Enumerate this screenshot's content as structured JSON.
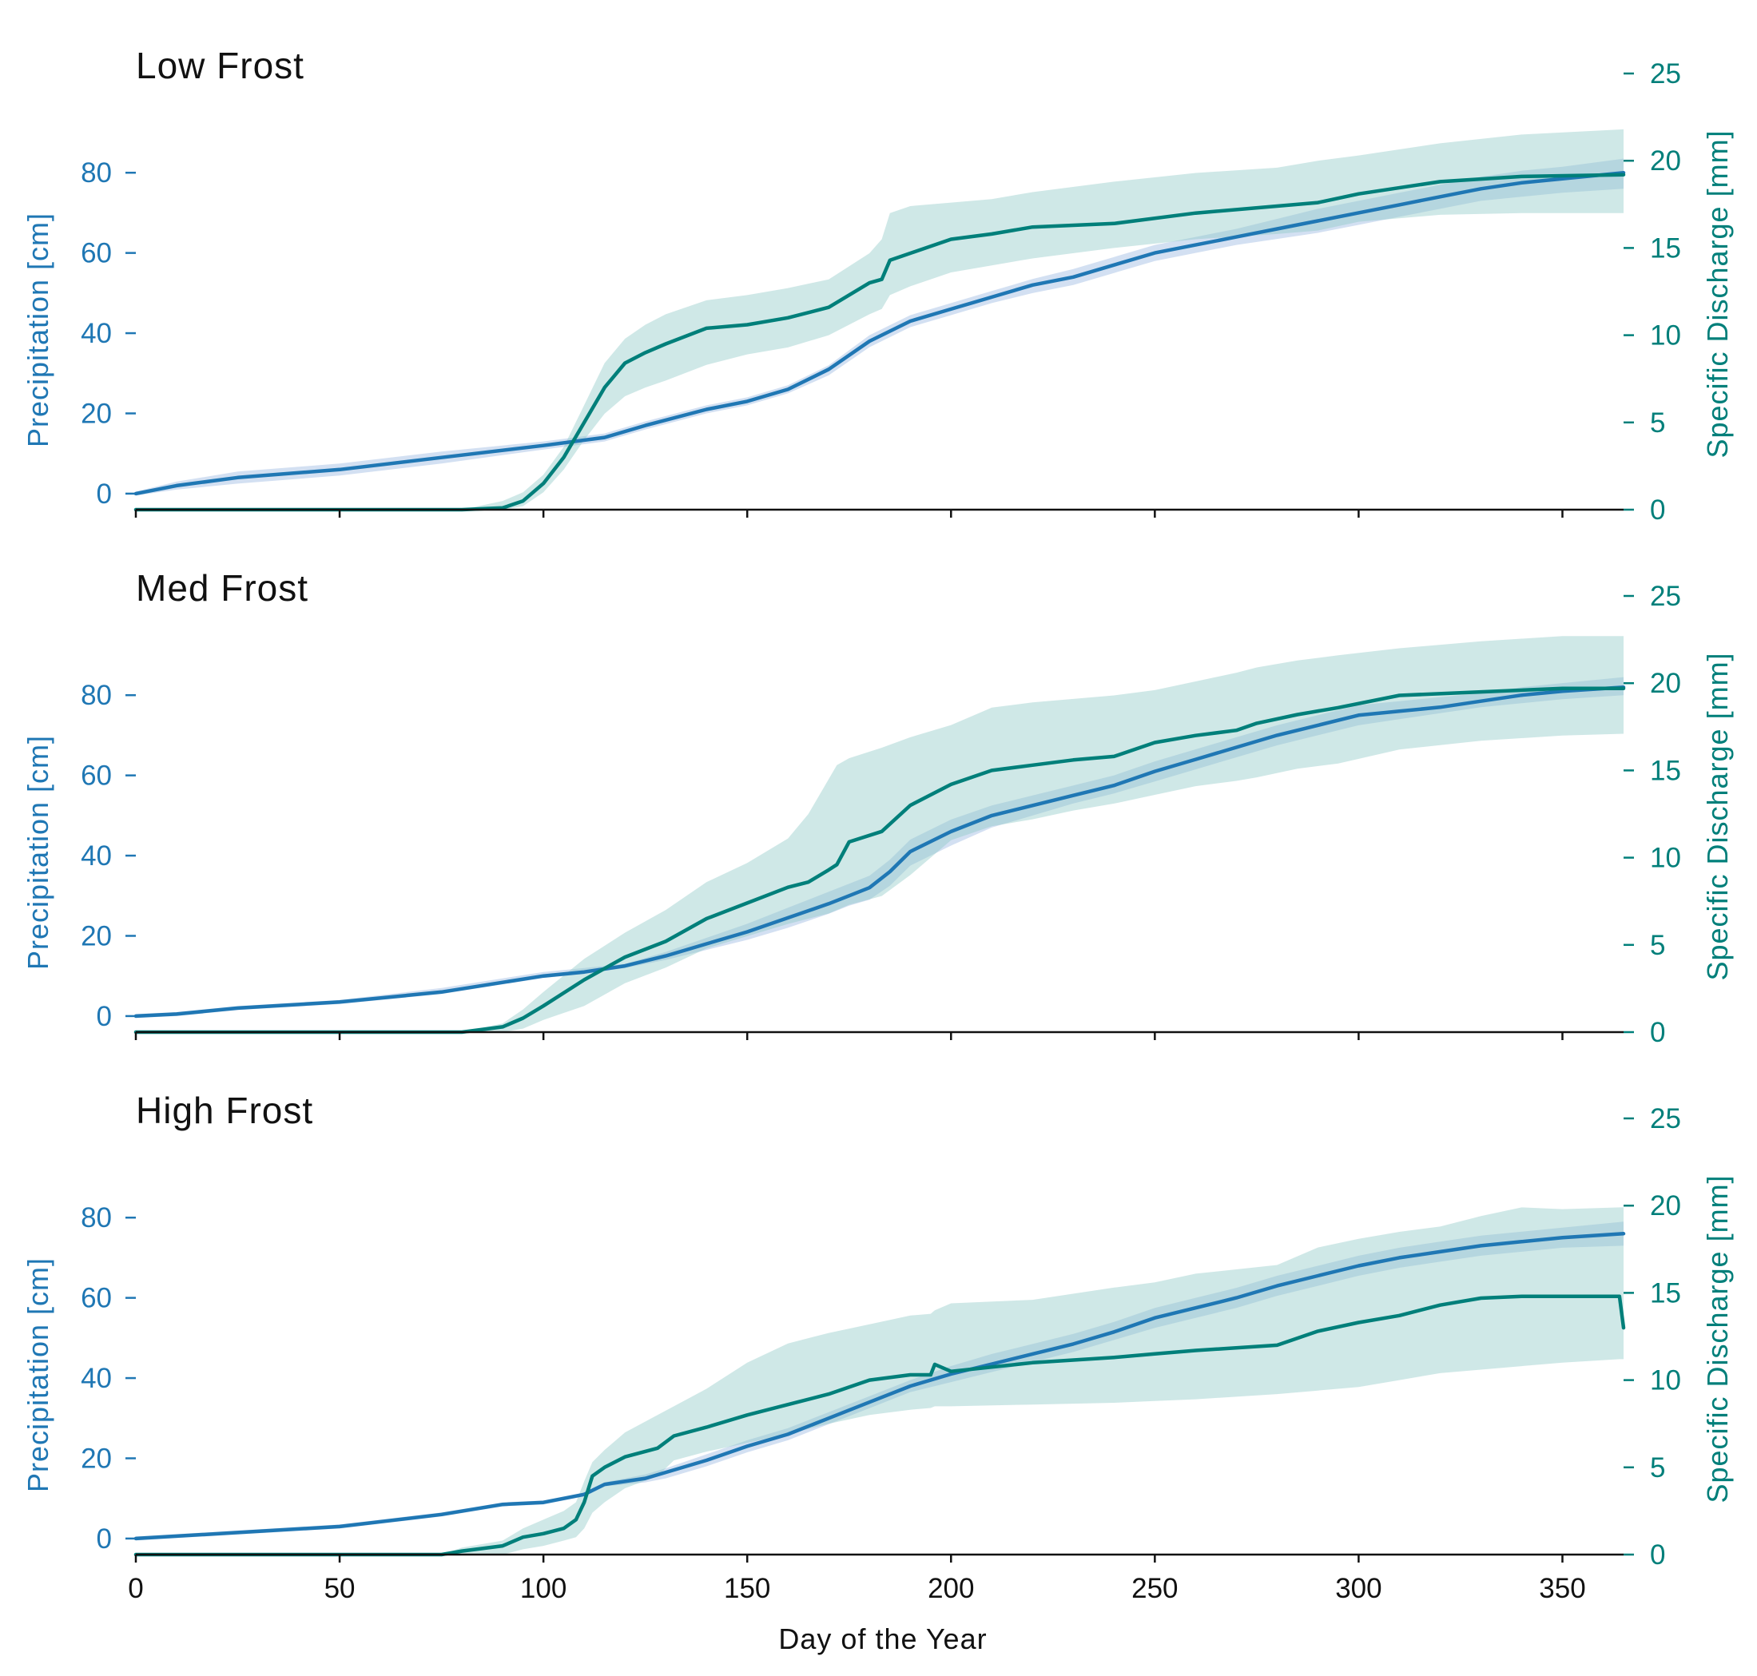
{
  "colors": {
    "precip": "#1f77b4",
    "precip_band": "#aec7e8",
    "discharge": "#007f7a",
    "discharge_band": "#8cc8c6",
    "axis": "#111111"
  },
  "x_axis": {
    "label": "Day of the Year",
    "ticks": [
      0,
      50,
      100,
      150,
      200,
      250,
      300,
      350
    ],
    "lim": [
      0,
      365
    ]
  },
  "y_left": {
    "label": "Precipitation [cm]",
    "ticks": [
      0,
      20,
      40,
      60,
      80
    ],
    "lim": [
      -4,
      90
    ]
  },
  "y_right": {
    "label": "Specific Discharge [mm]",
    "ticks": [
      0,
      5,
      10,
      15,
      20,
      25
    ],
    "lim": [
      0,
      25
    ]
  },
  "chart_data": [
    {
      "type": "line",
      "title": "Low Frost",
      "xlabel": "",
      "series": [
        {
          "axis": "left",
          "x": [
            0,
            10,
            25,
            50,
            75,
            100,
            115,
            125,
            140,
            150,
            160,
            170,
            180,
            190,
            200,
            210,
            220,
            230,
            240,
            250,
            260,
            270,
            280,
            290,
            300,
            310,
            320,
            330,
            340,
            350,
            365
          ],
          "y": [
            0,
            2,
            4,
            6,
            9,
            12,
            14,
            17,
            21,
            23,
            26,
            31,
            38,
            43,
            46,
            49,
            52,
            54,
            57,
            60,
            62,
            64,
            66,
            68,
            70,
            72,
            74,
            76,
            77.5,
            78.5,
            80
          ],
          "lower": [
            -0.5,
            1,
            2.5,
            4.5,
            7.5,
            11,
            13,
            16,
            20,
            22,
            25,
            29.5,
            36.5,
            41.5,
            44.5,
            47.5,
            50,
            52,
            55,
            58,
            60,
            62,
            63.5,
            65,
            67,
            69,
            71,
            73,
            74,
            75,
            76
          ],
          "upper": [
            0.5,
            3,
            5.5,
            7.5,
            10.5,
            13,
            15,
            18,
            22,
            24,
            27,
            32,
            39.5,
            44.5,
            47.5,
            50.5,
            53.5,
            56,
            59,
            62,
            64,
            66,
            68.5,
            71,
            73,
            75,
            77,
            79,
            80.5,
            81.5,
            83.5
          ]
        },
        {
          "axis": "right",
          "x": [
            0,
            80,
            90,
            95,
            100,
            105,
            110,
            115,
            120,
            125,
            130,
            140,
            150,
            160,
            170,
            180,
            183,
            185,
            190,
            200,
            210,
            220,
            240,
            260,
            280,
            290,
            300,
            320,
            340,
            365
          ],
          "y": [
            0,
            0,
            0.1,
            0.5,
            1.5,
            3,
            5,
            7,
            8.4,
            9,
            9.5,
            10.4,
            10.6,
            11,
            11.6,
            13,
            13.2,
            14.3,
            14.7,
            15.5,
            15.8,
            16.2,
            16.4,
            17,
            17.4,
            17.6,
            18.1,
            18.8,
            19.1,
            19.2
          ],
          "lower": [
            0,
            0,
            0,
            0.2,
            1,
            2.3,
            4,
            5.5,
            6.5,
            7,
            7.4,
            8.3,
            8.9,
            9.3,
            10,
            11.2,
            11.5,
            12.3,
            12.8,
            13.6,
            14,
            14.4,
            15,
            15.5,
            15.8,
            16,
            16.5,
            16.9,
            17,
            17
          ],
          "upper": [
            0,
            0,
            0.5,
            1,
            2,
            3.6,
            6,
            8.4,
            9.8,
            10.6,
            11.2,
            12,
            12.3,
            12.7,
            13.2,
            14.7,
            15.5,
            17,
            17.4,
            17.6,
            17.8,
            18.2,
            18.8,
            19.3,
            19.6,
            20,
            20.3,
            21,
            21.5,
            21.8
          ]
        }
      ]
    },
    {
      "type": "line",
      "title": "Med Frost",
      "xlabel": "",
      "series": [
        {
          "axis": "left",
          "x": [
            0,
            10,
            25,
            50,
            75,
            100,
            110,
            120,
            130,
            140,
            150,
            160,
            170,
            175,
            180,
            185,
            190,
            200,
            210,
            220,
            230,
            240,
            250,
            260,
            270,
            280,
            290,
            300,
            310,
            320,
            330,
            340,
            350,
            365
          ],
          "y": [
            0,
            0.5,
            2,
            3.5,
            6,
            10,
            11,
            12.5,
            15,
            18,
            21,
            24.5,
            28,
            30,
            32,
            36,
            41,
            46,
            50,
            52.5,
            55,
            57.5,
            61,
            64,
            67,
            70,
            72.5,
            75,
            76,
            77,
            78.5,
            80,
            81,
            82
          ],
          "lower": [
            -0.5,
            0,
            1.5,
            3,
            5.5,
            9.5,
            10.5,
            12,
            14,
            16.5,
            19,
            22,
            25.5,
            27.5,
            29,
            32.5,
            37.5,
            42.5,
            47,
            50,
            53,
            55.5,
            58.5,
            61.5,
            64.5,
            67.5,
            70,
            72.5,
            74,
            75.5,
            77,
            78,
            79,
            80
          ],
          "upper": [
            0.5,
            1,
            2.5,
            4,
            7,
            11,
            12,
            13,
            16,
            19.5,
            23,
            27,
            31,
            33,
            35,
            39,
            44,
            49,
            52.5,
            55,
            57.5,
            60,
            63.5,
            66.5,
            69.5,
            72.5,
            75,
            77.5,
            78.5,
            79.5,
            80.5,
            82,
            83,
            84.5
          ]
        },
        {
          "axis": "right",
          "x": [
            0,
            80,
            90,
            95,
            100,
            110,
            120,
            130,
            140,
            150,
            160,
            165,
            170,
            172,
            175,
            183,
            190,
            200,
            210,
            220,
            230,
            240,
            250,
            260,
            270,
            275,
            285,
            295,
            310,
            330,
            350,
            365
          ],
          "y": [
            0,
            0,
            0.3,
            0.8,
            1.5,
            3,
            4.3,
            5.2,
            6.5,
            7.4,
            8.3,
            8.6,
            9.3,
            9.6,
            10.9,
            11.5,
            13,
            14.2,
            15,
            15.3,
            15.6,
            15.8,
            16.6,
            17,
            17.3,
            17.7,
            18.2,
            18.6,
            19.3,
            19.5,
            19.7,
            19.7
          ],
          "lower": [
            0,
            0,
            0,
            0.2,
            0.7,
            1.5,
            2.8,
            3.7,
            4.8,
            5.5,
            6.2,
            6.5,
            6.8,
            7,
            7.3,
            7.8,
            9,
            11,
            11.8,
            12.2,
            12.7,
            13.1,
            13.6,
            14.1,
            14.4,
            14.6,
            15.1,
            15.4,
            16.2,
            16.7,
            17,
            17.1
          ],
          "upper": [
            0,
            0,
            0.5,
            1.3,
            2.3,
            4.2,
            5.7,
            7,
            8.6,
            9.7,
            11.1,
            12.5,
            14.5,
            15.3,
            15.7,
            16.3,
            16.9,
            17.6,
            18.6,
            18.9,
            19.1,
            19.3,
            19.6,
            20.1,
            20.6,
            20.9,
            21.3,
            21.6,
            22,
            22.4,
            22.7,
            22.7
          ]
        }
      ]
    },
    {
      "type": "line",
      "title": "High Frost",
      "xlabel": "Day of the Year",
      "series": [
        {
          "axis": "left",
          "x": [
            0,
            25,
            50,
            75,
            90,
            100,
            110,
            115,
            125,
            130,
            140,
            150,
            160,
            170,
            180,
            190,
            200,
            210,
            220,
            230,
            240,
            250,
            260,
            270,
            280,
            290,
            300,
            310,
            320,
            330,
            340,
            350,
            365
          ],
          "y": [
            0,
            1.5,
            3,
            6,
            8.5,
            9,
            11,
            13.5,
            15,
            16.5,
            19.5,
            23,
            26,
            30,
            34,
            38,
            41,
            43.5,
            46,
            48.5,
            51.5,
            55,
            57.5,
            60,
            63,
            65.5,
            68,
            70,
            71.5,
            73,
            74,
            75,
            76
          ],
          "lower": [
            -0.5,
            1,
            2.5,
            5.5,
            8,
            8.5,
            10.5,
            13,
            14,
            15,
            18,
            21.5,
            24.5,
            28.5,
            32.5,
            36.5,
            39,
            41.5,
            44,
            46.5,
            49.5,
            52.5,
            55,
            57.5,
            60.5,
            63,
            65.5,
            67.5,
            69,
            70.5,
            71.5,
            72.5,
            73
          ],
          "upper": [
            0.5,
            2,
            3.5,
            6.5,
            9,
            9.5,
            11.5,
            14,
            16,
            17.5,
            21,
            24.5,
            27.5,
            31.5,
            35.5,
            39.5,
            43,
            46,
            48.5,
            51,
            54,
            57.5,
            60,
            62.5,
            65.5,
            68,
            70.5,
            72.5,
            74,
            75.5,
            76.5,
            77.5,
            79
          ]
        },
        {
          "axis": "right",
          "x": [
            0,
            75,
            80,
            90,
            95,
            100,
            105,
            108,
            110,
            112,
            115,
            120,
            128,
            132,
            140,
            150,
            160,
            170,
            180,
            190,
            195,
            196,
            200,
            220,
            240,
            250,
            260,
            280,
            290,
            300,
            310,
            320,
            330,
            340,
            350,
            364,
            365
          ],
          "y": [
            0,
            0,
            0.2,
            0.5,
            1,
            1.2,
            1.5,
            2,
            3,
            4.5,
            5,
            5.6,
            6.1,
            6.8,
            7.3,
            8,
            8.6,
            9.2,
            10,
            10.3,
            10.3,
            10.9,
            10.5,
            11,
            11.3,
            11.5,
            11.7,
            12,
            12.8,
            13.3,
            13.7,
            14.3,
            14.7,
            14.8,
            14.8,
            14.8,
            13
          ],
          "lower": [
            0,
            0,
            0,
            0,
            0.3,
            0.5,
            0.8,
            1,
            1.5,
            2.4,
            3,
            3.8,
            4.5,
            5.4,
            5.9,
            6.4,
            6.9,
            7.5,
            8,
            8.3,
            8.4,
            8.5,
            8.5,
            8.6,
            8.7,
            8.8,
            8.9,
            9.2,
            9.4,
            9.6,
            10,
            10.4,
            10.6,
            10.8,
            11,
            11.2,
            11.2
          ],
          "upper": [
            0,
            0,
            0.4,
            0.8,
            1.5,
            2,
            2.5,
            3,
            4.2,
            5.3,
            6,
            7,
            8,
            8.5,
            9.5,
            11,
            12.1,
            12.7,
            13.2,
            13.7,
            13.8,
            14,
            14.4,
            14.6,
            15.3,
            15.6,
            16.1,
            16.6,
            17.6,
            18.1,
            18.5,
            18.8,
            19.4,
            19.9,
            19.8,
            19.9,
            19.9
          ]
        }
      ]
    }
  ]
}
